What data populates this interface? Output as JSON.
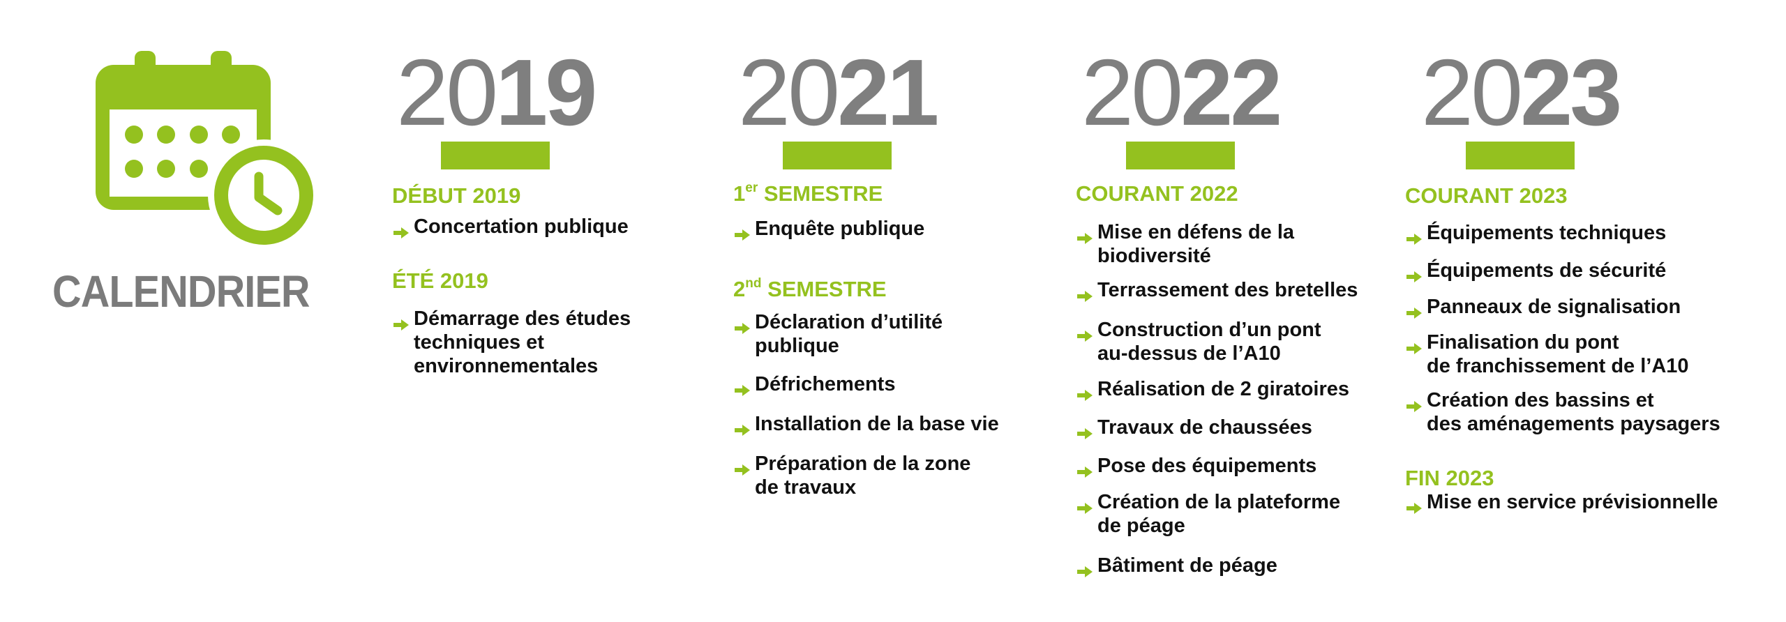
{
  "title": "CALENDRIER",
  "accent_color": "#94c11f",
  "year_color": "#7f7f7f",
  "icons": {
    "main": "calendar-clock-icon",
    "bullet": "arrow-right-icon"
  },
  "columns": [
    {
      "year_prefix": "20",
      "year_suffix": "19",
      "sections": [
        {
          "heading": {
            "num": "",
            "sup": "",
            "rest": "DÉBUT 2019"
          },
          "items": [
            [
              "Concertation publique"
            ]
          ]
        },
        {
          "heading": {
            "num": "",
            "sup": "",
            "rest": "ÉTÉ 2019"
          },
          "items": [
            [
              "Démarrage des études",
              "techniques et",
              "environnementales"
            ]
          ]
        }
      ]
    },
    {
      "year_prefix": "20",
      "year_suffix": "21",
      "sections": [
        {
          "heading": {
            "num": "1",
            "sup": "er",
            "rest": " SEMESTRE"
          },
          "items": [
            [
              "Enquête publique"
            ]
          ]
        },
        {
          "heading": {
            "num": "2",
            "sup": "nd",
            "rest": " SEMESTRE"
          },
          "items": [
            [
              "Déclaration d’utilité",
              "publique"
            ],
            [
              "Défrichements"
            ],
            [
              "Installation de la base vie"
            ],
            [
              "Préparation de la zone",
              "de travaux"
            ]
          ]
        }
      ]
    },
    {
      "year_prefix": "20",
      "year_suffix": "22",
      "sections": [
        {
          "heading": {
            "num": "",
            "sup": "",
            "rest": "COURANT 2022"
          },
          "items": [
            [
              "Mise en défens de la",
              "biodiversité"
            ],
            [
              "Terrassement des bretelles"
            ],
            [
              "Construction d’un pont",
              "au-dessus de l’A10"
            ],
            [
              "Réalisation de 2 giratoires"
            ],
            [
              "Travaux de chaussées"
            ],
            [
              "Pose des équipements"
            ],
            [
              "Création de la plateforme",
              "de péage"
            ],
            [
              "Bâtiment de péage"
            ]
          ]
        }
      ]
    },
    {
      "year_prefix": "20",
      "year_suffix": "23",
      "sections": [
        {
          "heading": {
            "num": "",
            "sup": "",
            "rest": "COURANT 2023"
          },
          "items": [
            [
              "Équipements techniques"
            ],
            [
              "Équipements de sécurité"
            ],
            [
              "Panneaux de signalisation"
            ],
            [
              "Finalisation du pont",
              "de franchissement de l’A10"
            ],
            [
              "Création des bassins et",
              "des aménagements paysagers"
            ]
          ]
        },
        {
          "heading": {
            "num": "",
            "sup": "",
            "rest": "FIN 2023"
          },
          "items": [
            [
              "Mise en service prévisionnelle"
            ]
          ]
        }
      ]
    }
  ]
}
